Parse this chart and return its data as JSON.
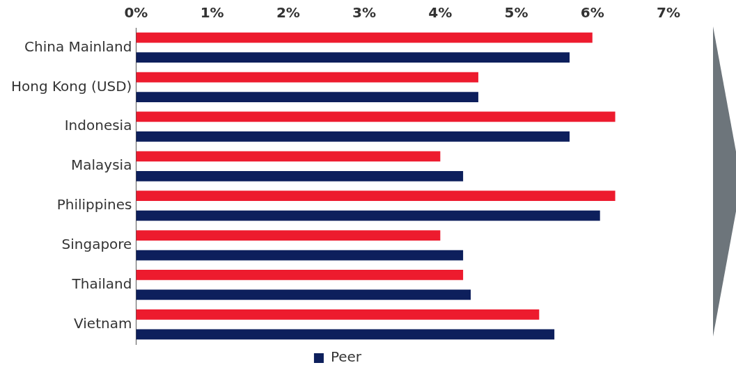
{
  "chart_data": {
    "type": "bar",
    "orientation": "horizontal",
    "categories": [
      "China Mainland",
      "Hong Kong (USD)",
      "Indonesia",
      "Malaysia",
      "Philippines",
      "Singapore",
      "Thailand",
      "Vietnam"
    ],
    "series": [
      {
        "color": "#ed1b2e",
        "values": [
          6.0,
          4.5,
          6.3,
          4.0,
          6.3,
          4.0,
          4.3,
          5.3
        ]
      },
      {
        "name": "Peer",
        "color": "#0d1f5c",
        "values": [
          5.7,
          4.5,
          5.7,
          4.3,
          6.1,
          4.3,
          4.4,
          5.5
        ]
      }
    ],
    "xlim": [
      0,
      7
    ],
    "xticks": [
      {
        "value": 0,
        "label": "0%"
      },
      {
        "value": 1,
        "label": "1%"
      },
      {
        "value": 2,
        "label": "2%"
      },
      {
        "value": 3,
        "label": "3%"
      },
      {
        "value": 4,
        "label": "4%"
      },
      {
        "value": 5,
        "label": "5%"
      },
      {
        "value": 6,
        "label": "6%"
      },
      {
        "value": 7,
        "label": "7%"
      }
    ],
    "grid": false,
    "legend": "bottom"
  }
}
